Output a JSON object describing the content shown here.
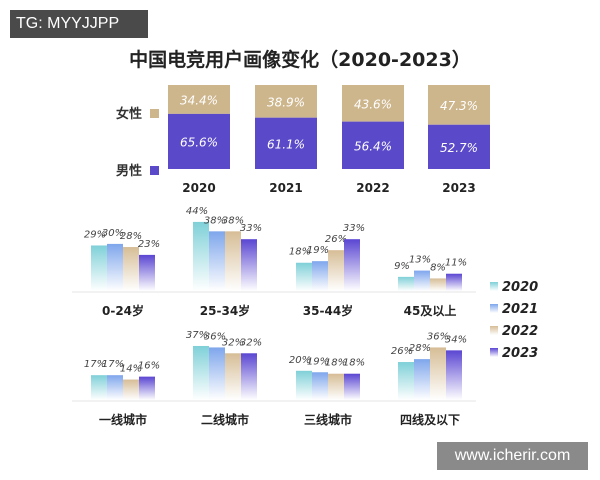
{
  "watermarks": {
    "top_left": "TG: MYYJJPP",
    "bottom_right": "www.icherir.com"
  },
  "colors": {
    "2020": "#7fd0d8",
    "2021": "#7fa6ec",
    "2022": "#d6bd96",
    "2023": "#5a46d2",
    "female": "#cdb58c",
    "male": "#5a49c8"
  },
  "chart_data": [
    {
      "type": "bar",
      "stacked": true,
      "title": "中国电竞用户画像变化（2020-2023）",
      "categories": [
        "2020",
        "2021",
        "2022",
        "2023"
      ],
      "series": [
        {
          "name": "男性",
          "values": [
            65.6,
            61.1,
            56.4,
            52.7
          ],
          "labels": [
            "65.6%",
            "61.1%",
            "56.4%",
            "52.7%"
          ]
        },
        {
          "name": "女性",
          "values": [
            34.4,
            38.9,
            43.6,
            47.3
          ],
          "labels": [
            "34.4%",
            "38.9%",
            "43.6%",
            "47.3%"
          ]
        }
      ]
    },
    {
      "type": "bar",
      "categories": [
        "0-24岁",
        "25-34岁",
        "35-44岁",
        "45及以上"
      ],
      "series": [
        {
          "name": "2020",
          "values": [
            29,
            44,
            18,
            9
          ]
        },
        {
          "name": "2021",
          "values": [
            30,
            38,
            19,
            13
          ]
        },
        {
          "name": "2022",
          "values": [
            28,
            38,
            26,
            8
          ]
        },
        {
          "name": "2023",
          "values": [
            23,
            33,
            33,
            11
          ]
        }
      ]
    },
    {
      "type": "bar",
      "categories": [
        "一线城市",
        "二线城市",
        "三线城市",
        "四线及以下"
      ],
      "series": [
        {
          "name": "2020",
          "values": [
            17,
            37,
            20,
            26
          ]
        },
        {
          "name": "2021",
          "values": [
            17,
            36,
            19,
            28
          ]
        },
        {
          "name": "2022",
          "values": [
            14,
            32,
            18,
            36
          ]
        },
        {
          "name": "2023",
          "values": [
            16,
            32,
            18,
            34
          ]
        }
      ]
    }
  ],
  "legend": [
    "2020",
    "2021",
    "2022",
    "2023"
  ]
}
